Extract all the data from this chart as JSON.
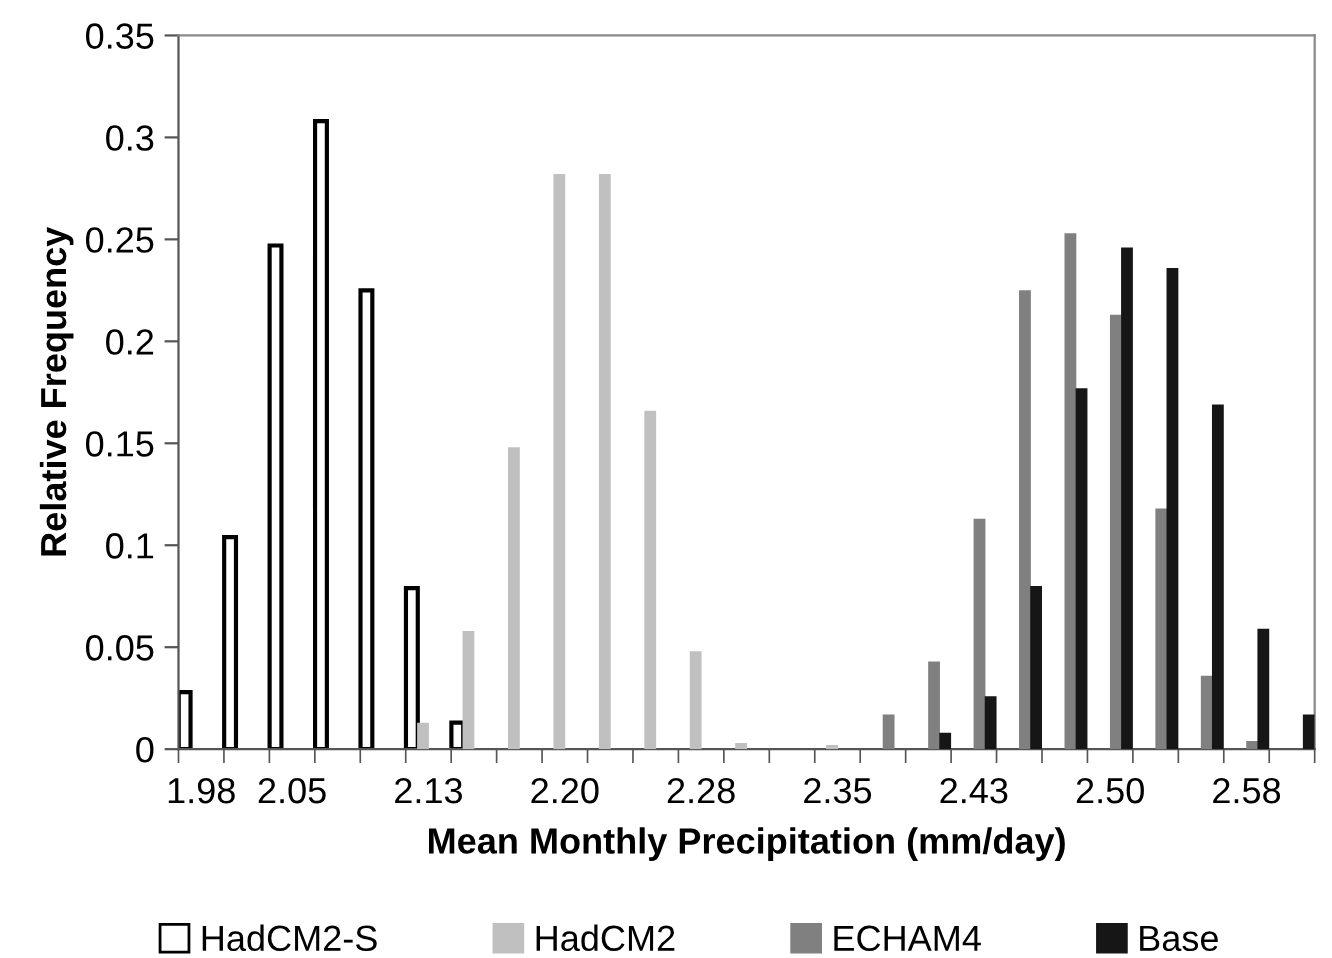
{
  "chart_data": {
    "type": "bar",
    "xlabel": "Mean Monthly Precipitation (mm/day)",
    "ylabel": "Relative Frequency",
    "categories": [
      "1.98",
      null,
      "2.05",
      null,
      null,
      "2.13",
      null,
      null,
      "2.20",
      null,
      null,
      "2.28",
      null,
      null,
      "2.35",
      null,
      null,
      "2.43",
      null,
      null,
      "2.50",
      null,
      null,
      "2.58",
      null
    ],
    "series": [
      {
        "name": "HadCM2-S",
        "color": "#ffffff",
        "values": [
          0.028,
          0.104,
          0.247,
          0.308,
          0.225,
          0.079,
          0.013,
          null,
          null,
          null,
          null,
          null,
          null,
          null,
          null,
          null,
          null,
          null,
          null,
          null,
          null,
          null,
          null,
          null,
          null
        ]
      },
      {
        "name": "HadCM2",
        "color": "#c0c0c0",
        "values": [
          null,
          null,
          null,
          null,
          null,
          0.013,
          0.058,
          0.148,
          0.282,
          0.282,
          0.166,
          0.048,
          0.003,
          null,
          0.002,
          null,
          null,
          null,
          null,
          null,
          null,
          null,
          null,
          null,
          null
        ]
      },
      {
        "name": "ECHAM4",
        "color": "#808080",
        "values": [
          null,
          null,
          null,
          null,
          null,
          null,
          null,
          null,
          null,
          null,
          null,
          null,
          null,
          null,
          null,
          0.017,
          0.043,
          0.113,
          0.225,
          0.253,
          0.213,
          0.118,
          0.036,
          0.004,
          null
        ]
      },
      {
        "name": "Base",
        "color": "#161616",
        "values": [
          null,
          null,
          null,
          null,
          null,
          null,
          null,
          null,
          null,
          null,
          null,
          null,
          null,
          null,
          null,
          null,
          0.008,
          0.026,
          0.08,
          0.177,
          0.246,
          0.236,
          0.169,
          0.059,
          0.017
        ]
      }
    ],
    "ylim": [
      0,
      0.35
    ],
    "yticks": [
      0,
      0.05,
      0.1,
      0.15,
      0.2,
      0.25,
      0.3,
      0.35
    ],
    "grid": false,
    "legend": "bottom"
  }
}
